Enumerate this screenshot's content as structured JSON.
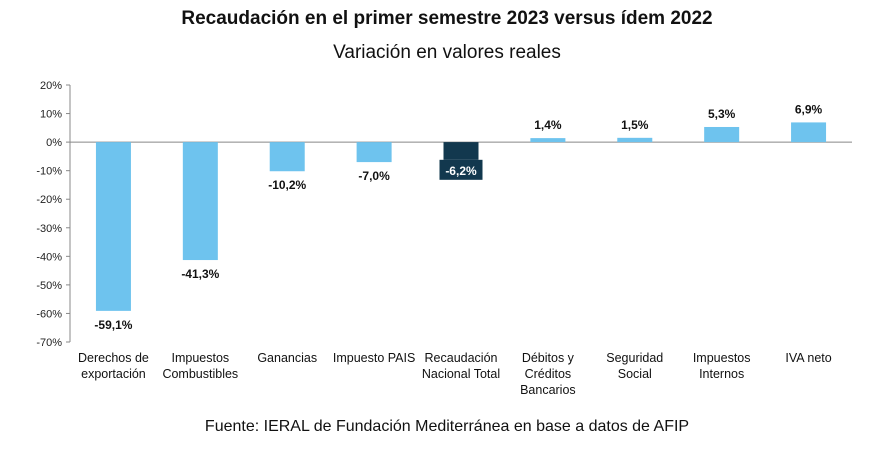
{
  "title": "Recaudación en el primer semestre 2023 versus ídem 2022",
  "subtitle": "Variación en valores reales",
  "source": "Fuente: IERAL de Fundación Mediterránea en base a datos de AFIP",
  "colors": {
    "bar": "#6ec3ee",
    "highlight": "#12384e",
    "axis": "#888888"
  },
  "chart_data": {
    "type": "bar",
    "categories": [
      [
        "Derechos de",
        "exportación"
      ],
      [
        "Impuestos",
        "Combustibles"
      ],
      [
        "Ganancias"
      ],
      [
        "Impuesto PAIS"
      ],
      [
        "Recaudación",
        "Nacional Total"
      ],
      [
        "Débitos y",
        "Créditos",
        "Bancarios"
      ],
      [
        "Seguridad",
        "Social"
      ],
      [
        "Impuestos",
        "Internos"
      ],
      [
        "IVA neto"
      ]
    ],
    "values": [
      -59.1,
      -41.3,
      -10.2,
      -7.0,
      -6.2,
      1.4,
      1.5,
      5.3,
      6.9
    ],
    "data_labels": [
      "-59,1%",
      "-41,3%",
      "-10,2%",
      "-7,0%",
      "-6,2%",
      "1,4%",
      "1,5%",
      "5,3%",
      "6,9%"
    ],
    "highlight_index": 4,
    "ylim": [
      -70,
      20
    ],
    "yticks": [
      20,
      10,
      0,
      -10,
      -20,
      -30,
      -40,
      -50,
      -60,
      -70
    ],
    "ytick_labels": [
      "20%",
      "10%",
      "0%",
      "-10%",
      "-20%",
      "-30%",
      "-40%",
      "-50%",
      "-60%",
      "-70%"
    ],
    "grid": false
  }
}
